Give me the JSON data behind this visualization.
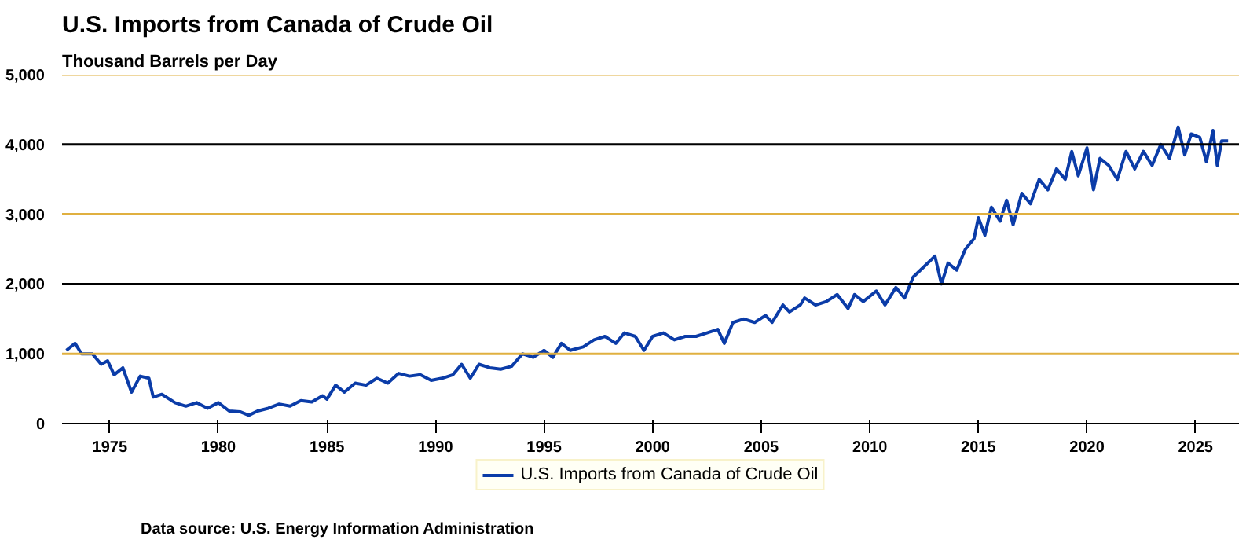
{
  "chart_data": {
    "type": "line",
    "title": "U.S. Imports from Canada of Crude Oil",
    "ylabel": "Thousand Barrels per Day",
    "x": [
      1973.0,
      1973.4,
      1973.7,
      1974.2,
      1974.6,
      1974.9,
      1975.2,
      1975.6,
      1976.0,
      1976.4,
      1976.8,
      1977.0,
      1977.4,
      1978.0,
      1978.5,
      1979.0,
      1979.5,
      1980.0,
      1980.5,
      1981.0,
      1981.4,
      1981.8,
      1982.3,
      1982.8,
      1983.3,
      1983.8,
      1984.3,
      1984.8,
      1985.0,
      1985.4,
      1985.8,
      1986.3,
      1986.8,
      1987.3,
      1987.8,
      1988.3,
      1988.8,
      1989.3,
      1989.8,
      1990.3,
      1990.8,
      1991.2,
      1991.6,
      1992.0,
      1992.5,
      1993.0,
      1993.5,
      1994.0,
      1994.5,
      1995.0,
      1995.4,
      1995.8,
      1996.2,
      1996.8,
      1997.3,
      1997.8,
      1998.3,
      1998.7,
      1999.2,
      1999.6,
      2000.0,
      2000.5,
      2001.0,
      2001.5,
      2002.0,
      2002.5,
      2003.0,
      2003.3,
      2003.7,
      2004.2,
      2004.7,
      2005.2,
      2005.5,
      2006.0,
      2006.3,
      2006.8,
      2007.0,
      2007.5,
      2008.0,
      2008.5,
      2009.0,
      2009.3,
      2009.7,
      2010.3,
      2010.7,
      2011.2,
      2011.6,
      2012.0,
      2012.5,
      2013.0,
      2013.3,
      2013.6,
      2014.0,
      2014.4,
      2014.8,
      2015.0,
      2015.3,
      2015.6,
      2016.0,
      2016.3,
      2016.6,
      2017.0,
      2017.4,
      2017.8,
      2018.2,
      2018.6,
      2019.0,
      2019.3,
      2019.6,
      2020.0,
      2020.3,
      2020.6,
      2021.0,
      2021.4,
      2021.8,
      2022.2,
      2022.6,
      2023.0,
      2023.4,
      2023.8,
      2024.2,
      2024.5,
      2024.8,
      2025.2,
      2025.5,
      2025.8,
      2026.0,
      2026.2,
      2026.5
    ],
    "series": [
      {
        "name": "U.S. Imports from Canada of Crude Oil",
        "color": "#0b3ca8",
        "values": [
          1050,
          1150,
          1000,
          1000,
          850,
          900,
          700,
          800,
          450,
          680,
          650,
          380,
          420,
          300,
          250,
          300,
          220,
          300,
          180,
          170,
          120,
          180,
          220,
          280,
          250,
          330,
          310,
          400,
          350,
          550,
          450,
          580,
          550,
          650,
          580,
          720,
          680,
          700,
          620,
          650,
          700,
          850,
          650,
          850,
          800,
          780,
          820,
          1000,
          950,
          1050,
          950,
          1150,
          1050,
          1100,
          1200,
          1250,
          1150,
          1300,
          1250,
          1050,
          1250,
          1300,
          1200,
          1250,
          1250,
          1300,
          1350,
          1150,
          1450,
          1500,
          1450,
          1550,
          1450,
          1700,
          1600,
          1700,
          1800,
          1700,
          1750,
          1850,
          1650,
          1850,
          1750,
          1900,
          1700,
          1950,
          1800,
          2100,
          2250,
          2400,
          2000,
          2300,
          2200,
          2500,
          2650,
          2950,
          2700,
          3100,
          2900,
          3200,
          2850,
          3300,
          3150,
          3500,
          3350,
          3650,
          3500,
          3900,
          3550,
          3950,
          3350,
          3800,
          3700,
          3500,
          3900,
          3650,
          3900,
          3700,
          4000,
          3800,
          4250,
          3850,
          4150,
          4100,
          3750,
          4200,
          3700,
          4050,
          4050
        ]
      }
    ],
    "xlim": [
      1972.8,
      2027
    ],
    "xticks": [
      1975,
      1980,
      1985,
      1990,
      1995,
      2000,
      2005,
      2010,
      2015,
      2020,
      2025
    ],
    "ylim": [
      0,
      5000
    ],
    "yticks": [
      0,
      {
        "value": 1000,
        "label": "1,000"
      },
      {
        "value": 2000,
        "label": "2,000"
      },
      {
        "value": 3000,
        "label": "3,000"
      },
      {
        "value": 4000,
        "label": "4,000"
      },
      {
        "value": 5000,
        "label": "5,000"
      }
    ],
    "grid": "y",
    "legend": "bottom",
    "marker": "none",
    "line_style": "solid",
    "annotations": [
      "Data source: U.S. Energy Information Administration"
    ]
  }
}
